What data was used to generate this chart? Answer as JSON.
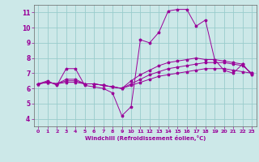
{
  "xlabel": "Windchill (Refroidissement éolien,°C)",
  "bg_color": "#cce8e8",
  "grid_color": "#99cccc",
  "line_color": "#990099",
  "spine_color": "#666666",
  "xlim": [
    -0.5,
    23.5
  ],
  "ylim": [
    3.5,
    11.5
  ],
  "yticks": [
    4,
    5,
    6,
    7,
    8,
    9,
    10,
    11
  ],
  "xticks": [
    0,
    1,
    2,
    3,
    4,
    5,
    6,
    7,
    8,
    9,
    10,
    11,
    12,
    13,
    14,
    15,
    16,
    17,
    18,
    19,
    20,
    21,
    22,
    23
  ],
  "series": [
    {
      "x": [
        0,
        1,
        2,
        3,
        4,
        5,
        6,
        7,
        8,
        9,
        10,
        11,
        12,
        13,
        14,
        15,
        16,
        17,
        18,
        19,
        20,
        21,
        22,
        23
      ],
      "y": [
        6.3,
        6.5,
        6.2,
        7.3,
        7.3,
        6.2,
        6.1,
        6.0,
        5.7,
        4.2,
        4.8,
        9.2,
        9.0,
        9.7,
        11.1,
        11.2,
        11.2,
        10.1,
        10.5,
        7.9,
        7.2,
        7.0,
        7.6,
        6.9
      ]
    },
    {
      "x": [
        0,
        1,
        2,
        3,
        4,
        5,
        6,
        7,
        8,
        9,
        10,
        11,
        12,
        13,
        14,
        15,
        16,
        17,
        18,
        19,
        20,
        21,
        22,
        23
      ],
      "y": [
        6.3,
        6.4,
        6.3,
        6.4,
        6.4,
        6.3,
        6.3,
        6.2,
        6.1,
        6.0,
        6.2,
        6.4,
        6.6,
        6.8,
        6.9,
        7.0,
        7.1,
        7.2,
        7.3,
        7.3,
        7.3,
        7.2,
        7.1,
        7.0
      ]
    },
    {
      "x": [
        0,
        1,
        2,
        3,
        4,
        5,
        6,
        7,
        8,
        9,
        10,
        11,
        12,
        13,
        14,
        15,
        16,
        17,
        18,
        19,
        20,
        21,
        22,
        23
      ],
      "y": [
        6.3,
        6.4,
        6.3,
        6.5,
        6.5,
        6.3,
        6.3,
        6.2,
        6.1,
        6.0,
        6.3,
        6.6,
        6.9,
        7.1,
        7.3,
        7.4,
        7.5,
        7.6,
        7.7,
        7.7,
        7.7,
        7.6,
        7.5,
        7.0
      ]
    },
    {
      "x": [
        0,
        1,
        2,
        3,
        4,
        5,
        6,
        7,
        8,
        9,
        10,
        11,
        12,
        13,
        14,
        15,
        16,
        17,
        18,
        19,
        20,
        21,
        22,
        23
      ],
      "y": [
        6.3,
        6.4,
        6.3,
        6.6,
        6.6,
        6.3,
        6.3,
        6.2,
        6.1,
        6.0,
        6.5,
        6.9,
        7.2,
        7.5,
        7.7,
        7.8,
        7.9,
        8.0,
        7.9,
        7.9,
        7.8,
        7.7,
        7.6,
        6.9
      ]
    }
  ]
}
